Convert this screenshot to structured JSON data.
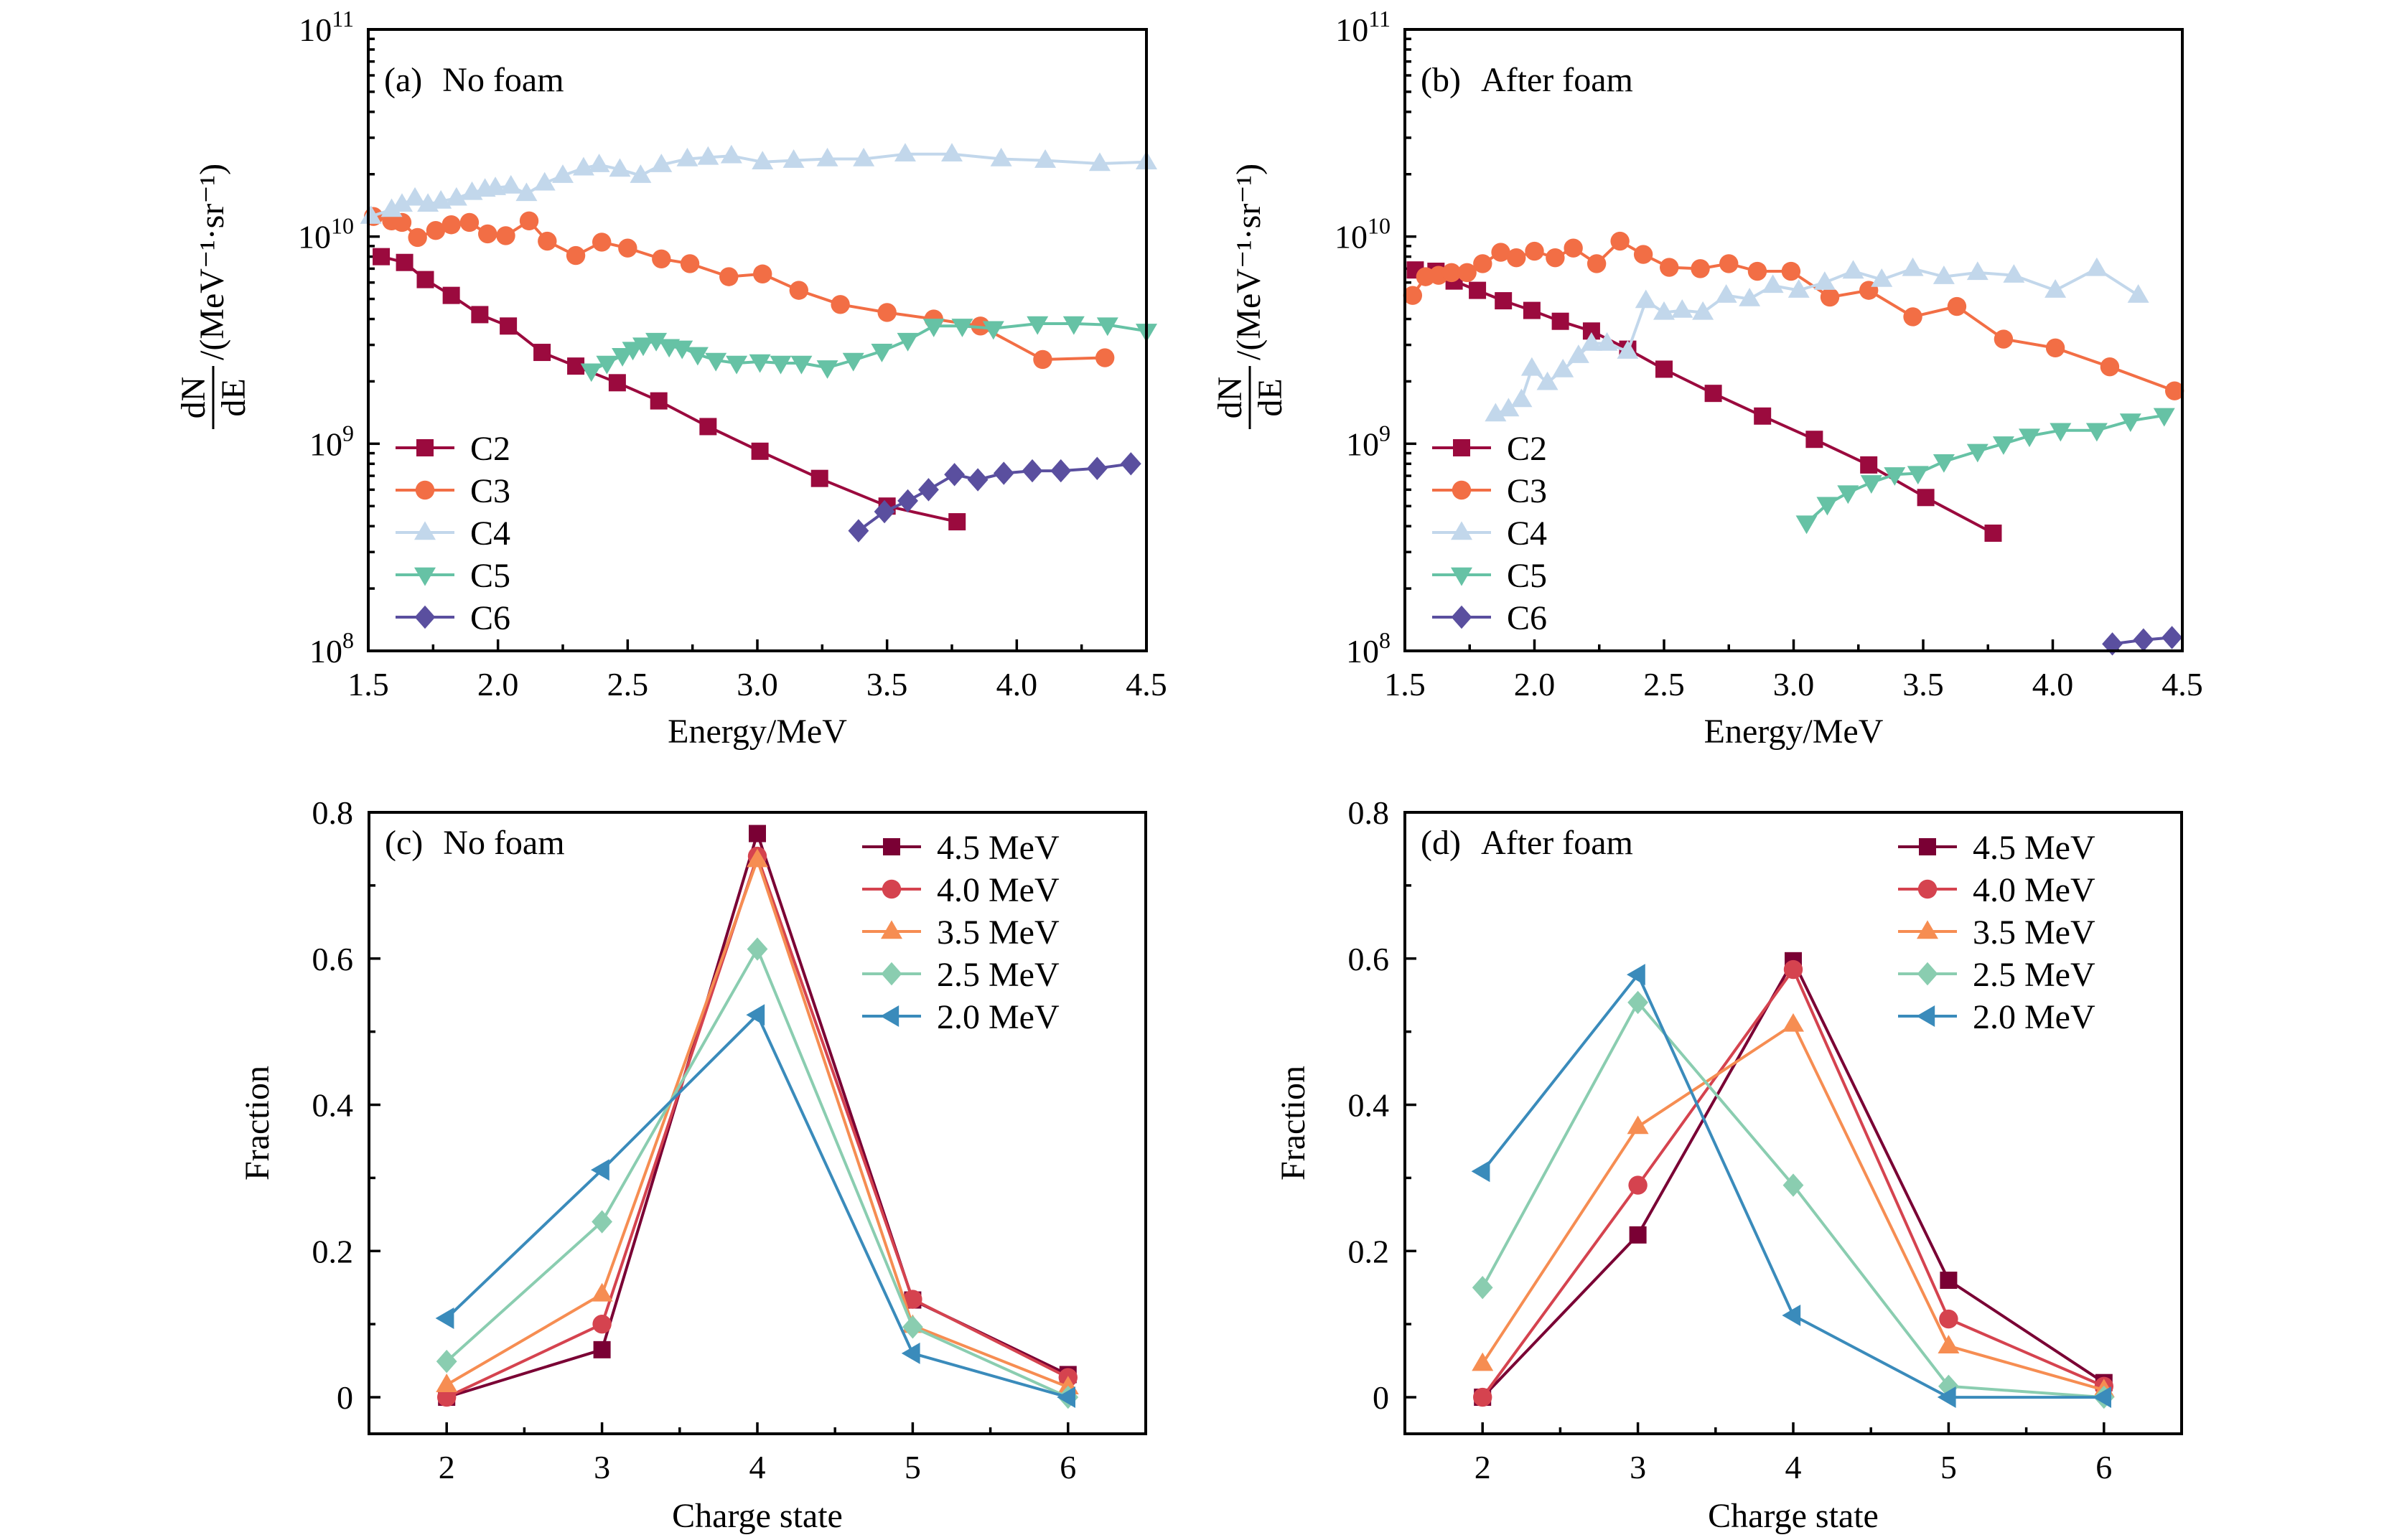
{
  "figure": {
    "panels": [
      "a",
      "b",
      "c",
      "d"
    ]
  },
  "chart_data": [
    {
      "id": "a",
      "type": "line",
      "title": "(a)  No foam",
      "panel_tag": "(a)",
      "panel_caption": "No foam",
      "xlabel": "Energy/MeV",
      "ylabel_numerator": "dN",
      "ylabel_denominator": "dE",
      "ylabel_units": "/(MeV⁻¹·sr⁻¹)",
      "ylabel": "dN/dE/(MeV^-1·sr^-1)",
      "xlim": [
        1.5,
        4.5
      ],
      "ylim": [
        100000000.0,
        100000000000.0
      ],
      "yscale": "log",
      "xticks": [
        1.5,
        2.0,
        2.5,
        3.0,
        3.5,
        4.0,
        4.5
      ],
      "xtick_labels": [
        "1.5",
        "2.0",
        "2.5",
        "3.0",
        "3.5",
        "4.0",
        "4.5"
      ],
      "yticks": [
        8,
        9,
        10,
        11
      ],
      "ytick_labels": [
        {
          "base": "10",
          "exp": "8"
        },
        {
          "base": "10",
          "exp": "9"
        },
        {
          "base": "10",
          "exp": "10"
        },
        {
          "base": "10",
          "exp": "11"
        }
      ],
      "grid": false,
      "legend_position": "bottom-left",
      "series": [
        {
          "name": "C2",
          "color": "#9b0a3e",
          "marker": "square",
          "x": [
            1.55,
            1.64,
            1.72,
            1.82,
            1.93,
            2.04,
            2.17,
            2.3,
            2.46,
            2.62,
            2.81,
            3.01,
            3.24,
            3.5,
            3.77
          ],
          "y": [
            8000000000.0,
            7500000000.0,
            6200000000.0,
            5200000000.0,
            4200000000.0,
            3700000000.0,
            2760000000.0,
            2370000000.0,
            1970000000.0,
            1610000000.0,
            1210000000.0,
            920000000.0,
            680000000.0,
            500000000.0,
            420000000.0
          ]
        },
        {
          "name": "C3",
          "color": "#f26e45",
          "marker": "circle",
          "x": [
            1.52,
            1.59,
            1.63,
            1.69,
            1.76,
            1.82,
            1.89,
            1.96,
            2.03,
            2.12,
            2.19,
            2.3,
            2.4,
            2.5,
            2.63,
            2.74,
            2.89,
            3.02,
            3.16,
            3.32,
            3.5,
            3.68,
            3.86,
            4.1,
            4.34
          ],
          "y": [
            12500000000.0,
            11900000000.0,
            11700000000.0,
            9900000000.0,
            10700000000.0,
            11400000000.0,
            11700000000.0,
            10300000000.0,
            10100000000.0,
            11900000000.0,
            9500000000.0,
            8100000000.0,
            9400000000.0,
            8800000000.0,
            7800000000.0,
            7400000000.0,
            6400000000.0,
            6600000000.0,
            5500000000.0,
            4700000000.0,
            4300000000.0,
            4000000000.0,
            3700000000.0,
            2550000000.0,
            2600000000.0
          ]
        },
        {
          "name": "C4",
          "color": "#c2d7eb",
          "marker": "triangle-up",
          "x": [
            1.51,
            1.59,
            1.63,
            1.68,
            1.73,
            1.78,
            1.84,
            1.9,
            1.95,
            1.99,
            2.05,
            2.11,
            2.18,
            2.25,
            2.33,
            2.39,
            2.47,
            2.55,
            2.63,
            2.73,
            2.81,
            2.9,
            3.02,
            3.14,
            3.27,
            3.41,
            3.57,
            3.75,
            3.94,
            4.11,
            4.32,
            4.5
          ],
          "y": [
            12500000000.0,
            13500000000.0,
            14300000000.0,
            15300000000.0,
            14300000000.0,
            14800000000.0,
            15300000000.0,
            16300000000.0,
            16900000000.0,
            17200000000.0,
            17500000000.0,
            16100000000.0,
            18100000000.0,
            19700000000.0,
            21400000000.0,
            22200000000.0,
            21100000000.0,
            19700000000.0,
            22200000000.0,
            23700000000.0,
            24100000000.0,
            24500000000.0,
            22900000000.0,
            23300000000.0,
            23700000000.0,
            23700000000.0,
            25000000000.0,
            25000000000.0,
            23700000000.0,
            23300000000.0,
            22500000000.0,
            22900000000.0
          ]
        },
        {
          "name": "C5",
          "color": "#66c2a5",
          "marker": "triangle-down",
          "x": [
            2.36,
            2.42,
            2.48,
            2.52,
            2.56,
            2.61,
            2.66,
            2.71,
            2.77,
            2.84,
            2.92,
            3.01,
            3.09,
            3.17,
            3.27,
            3.37,
            3.48,
            3.58,
            3.68,
            3.79,
            3.91,
            4.08,
            4.22,
            4.35,
            4.5
          ],
          "y": [
            2250000000.0,
            2450000000.0,
            2670000000.0,
            2860000000.0,
            3000000000.0,
            3160000000.0,
            2950000000.0,
            2900000000.0,
            2700000000.0,
            2530000000.0,
            2450000000.0,
            2490000000.0,
            2450000000.0,
            2450000000.0,
            2330000000.0,
            2530000000.0,
            2800000000.0,
            3160000000.0,
            3700000000.0,
            3700000000.0,
            3600000000.0,
            3800000000.0,
            3800000000.0,
            3750000000.0,
            3500000000.0
          ]
        },
        {
          "name": "C6",
          "color": "#5a4f9f",
          "marker": "diamond",
          "x": [
            3.39,
            3.49,
            3.58,
            3.66,
            3.76,
            3.85,
            3.95,
            4.06,
            4.17,
            4.31,
            4.44
          ],
          "y": [
            380000000.0,
            470000000.0,
            530000000.0,
            600000000.0,
            710000000.0,
            670000000.0,
            720000000.0,
            740000000.0,
            740000000.0,
            760000000.0,
            800000000.0
          ]
        }
      ]
    },
    {
      "id": "b",
      "type": "line",
      "title": "(b)  After foam",
      "panel_tag": "(b)",
      "panel_caption": "After foam",
      "xlabel": "Energy/MeV",
      "ylabel_numerator": "dN",
      "ylabel_denominator": "dE",
      "ylabel_units": "/(MeV⁻¹·sr⁻¹)",
      "ylabel": "dN/dE/(MeV^-1·sr^-1)",
      "xlim": [
        1.5,
        4.5
      ],
      "ylim": [
        100000000.0,
        100000000000.0
      ],
      "yscale": "log",
      "xticks": [
        1.5,
        2.0,
        2.5,
        3.0,
        3.5,
        4.0,
        4.5
      ],
      "xtick_labels": [
        "1.5",
        "2.0",
        "2.5",
        "3.0",
        "3.5",
        "4.0",
        "4.5"
      ],
      "yticks": [
        8,
        9,
        10,
        11
      ],
      "ytick_labels": [
        {
          "base": "10",
          "exp": "8"
        },
        {
          "base": "10",
          "exp": "9"
        },
        {
          "base": "10",
          "exp": "10"
        },
        {
          "base": "10",
          "exp": "11"
        }
      ],
      "grid": false,
      "legend_position": "bottom-left",
      "series": [
        {
          "name": "C2",
          "color": "#9b0a3e",
          "marker": "square",
          "x": [
            1.54,
            1.62,
            1.69,
            1.78,
            1.88,
            1.99,
            2.1,
            2.22,
            2.36,
            2.5,
            2.69,
            2.88,
            3.08,
            3.29,
            3.51,
            3.77
          ],
          "y": [
            6900000000.0,
            6800000000.0,
            6100000000.0,
            5500000000.0,
            4900000000.0,
            4400000000.0,
            3900000000.0,
            3500000000.0,
            2860000000.0,
            2290000000.0,
            1750000000.0,
            1360000000.0,
            1050000000.0,
            790000000.0,
            550000000.0,
            370000000.0
          ]
        },
        {
          "name": "C3",
          "color": "#f26e45",
          "marker": "circle",
          "x": [
            1.53,
            1.58,
            1.63,
            1.68,
            1.74,
            1.8,
            1.87,
            1.93,
            2.0,
            2.08,
            2.15,
            2.24,
            2.33,
            2.42,
            2.52,
            2.64,
            2.75,
            2.86,
            2.99,
            3.14,
            3.29,
            3.46,
            3.63,
            3.81,
            4.01,
            4.22,
            4.47
          ],
          "y": [
            5200000000.0,
            6400000000.0,
            6500000000.0,
            6700000000.0,
            6700000000.0,
            7400000000.0,
            8400000000.0,
            7900000000.0,
            8500000000.0,
            7900000000.0,
            8800000000.0,
            7400000000.0,
            9500000000.0,
            8200000000.0,
            7100000000.0,
            7000000000.0,
            7400000000.0,
            6800000000.0,
            6800000000.0,
            5100000000.0,
            5500000000.0,
            4100000000.0,
            4600000000.0,
            3200000000.0,
            2900000000.0,
            2350000000.0,
            1800000000.0
          ]
        },
        {
          "name": "C4",
          "color": "#c2d7eb",
          "marker": "triangle-up",
          "x": [
            1.85,
            1.9,
            1.95,
            1.99,
            2.05,
            2.11,
            2.17,
            2.22,
            2.28,
            2.36,
            2.43,
            2.5,
            2.57,
            2.65,
            2.74,
            2.83,
            2.92,
            3.02,
            3.12,
            3.23,
            3.34,
            3.46,
            3.58,
            3.71,
            3.85,
            4.01,
            4.17,
            4.33
          ],
          "y": [
            1390000000.0,
            1470000000.0,
            1630000000.0,
            2310000000.0,
            1970000000.0,
            2270000000.0,
            2660000000.0,
            3050000000.0,
            3050000000.0,
            2790000000.0,
            4900000000.0,
            4300000000.0,
            4400000000.0,
            4300000000.0,
            5200000000.0,
            5000000000.0,
            5800000000.0,
            5500000000.0,
            6000000000.0,
            6800000000.0,
            6200000000.0,
            7000000000.0,
            6400000000.0,
            6700000000.0,
            6500000000.0,
            5500000000.0,
            7000000000.0,
            5200000000.0
          ]
        },
        {
          "name": "C5",
          "color": "#66c2a5",
          "marker": "triangle-down",
          "x": [
            3.05,
            3.13,
            3.21,
            3.3,
            3.39,
            3.48,
            3.58,
            3.71,
            3.81,
            3.91,
            4.03,
            4.17,
            4.3,
            4.43
          ],
          "y": [
            415000000.0,
            510000000.0,
            580000000.0,
            650000000.0,
            710000000.0,
            720000000.0,
            820000000.0,
            920000000.0,
            1000000000.0,
            1090000000.0,
            1160000000.0,
            1160000000.0,
            1290000000.0,
            1370000000.0
          ]
        },
        {
          "name": "C6",
          "color": "#5a4f9f",
          "marker": "diamond",
          "x": [
            4.23,
            4.35,
            4.46
          ],
          "y": [
            108000000.0,
            113000000.0,
            116000000.0
          ]
        }
      ]
    },
    {
      "id": "c",
      "type": "line",
      "title": "(c)  No foam",
      "panel_tag": "(c)",
      "panel_caption": "No foam",
      "xlabel": "Charge state",
      "ylabel": "Fraction",
      "xlim": [
        1.5,
        6.5
      ],
      "ylim": [
        -0.05,
        0.8
      ],
      "yscale": "linear",
      "xticks": [
        2,
        3,
        4,
        5,
        6
      ],
      "xtick_labels": [
        "2",
        "3",
        "4",
        "5",
        "6"
      ],
      "yticks": [
        0,
        0.2,
        0.4,
        0.6,
        0.8
      ],
      "ytick_labels": [
        "0",
        "0.2",
        "0.4",
        "0.6",
        "0.8"
      ],
      "grid": false,
      "legend_position": "top-right",
      "categories": [
        2,
        3,
        4,
        5,
        6
      ],
      "series": [
        {
          "name": "4.5 MeV",
          "color": "#7a0034",
          "marker": "square",
          "values": [
            0.0,
            0.065,
            0.771,
            0.133,
            0.031
          ]
        },
        {
          "name": "4.0 MeV",
          "color": "#d5434f",
          "marker": "circle",
          "values": [
            0.0,
            0.1,
            0.74,
            0.134,
            0.027
          ]
        },
        {
          "name": "3.5 MeV",
          "color": "#f68d52",
          "marker": "triangle-up",
          "values": [
            0.017,
            0.141,
            0.735,
            0.098,
            0.014
          ]
        },
        {
          "name": "2.5 MeV",
          "color": "#8acdb0",
          "marker": "diamond",
          "values": [
            0.049,
            0.24,
            0.613,
            0.096,
            0.0
          ]
        },
        {
          "name": "2.0 MeV",
          "color": "#3a8bbb",
          "marker": "triangle-left",
          "values": [
            0.108,
            0.311,
            0.523,
            0.06,
            0.0
          ]
        }
      ]
    },
    {
      "id": "d",
      "type": "line",
      "title": "(d)  After foam",
      "panel_tag": "(d)",
      "panel_caption": "After foam",
      "xlabel": "Charge state",
      "ylabel": "Fraction",
      "xlim": [
        1.5,
        6.5
      ],
      "ylim": [
        -0.05,
        0.8
      ],
      "yscale": "linear",
      "xticks": [
        2,
        3,
        4,
        5,
        6
      ],
      "xtick_labels": [
        "2",
        "3",
        "4",
        "5",
        "6"
      ],
      "yticks": [
        0,
        0.2,
        0.4,
        0.6,
        0.8
      ],
      "ytick_labels": [
        "0",
        "0.2",
        "0.4",
        "0.6",
        "0.8"
      ],
      "grid": false,
      "legend_position": "top-right",
      "categories": [
        2,
        3,
        4,
        5,
        6
      ],
      "series": [
        {
          "name": "4.5 MeV",
          "color": "#7a0034",
          "marker": "square",
          "values": [
            0.0,
            0.222,
            0.597,
            0.16,
            0.02
          ]
        },
        {
          "name": "4.0 MeV",
          "color": "#d5434f",
          "marker": "circle",
          "values": [
            0.0,
            0.29,
            0.585,
            0.107,
            0.015
          ]
        },
        {
          "name": "3.5 MeV",
          "color": "#f68d52",
          "marker": "triangle-up",
          "values": [
            0.046,
            0.37,
            0.51,
            0.07,
            0.01
          ]
        },
        {
          "name": "2.5 MeV",
          "color": "#8acdb0",
          "marker": "diamond",
          "values": [
            0.15,
            0.54,
            0.29,
            0.015,
            0.0
          ]
        },
        {
          "name": "2.0 MeV",
          "color": "#3a8bbb",
          "marker": "triangle-left",
          "values": [
            0.309,
            0.578,
            0.112,
            0.0,
            0.0
          ]
        }
      ]
    }
  ]
}
